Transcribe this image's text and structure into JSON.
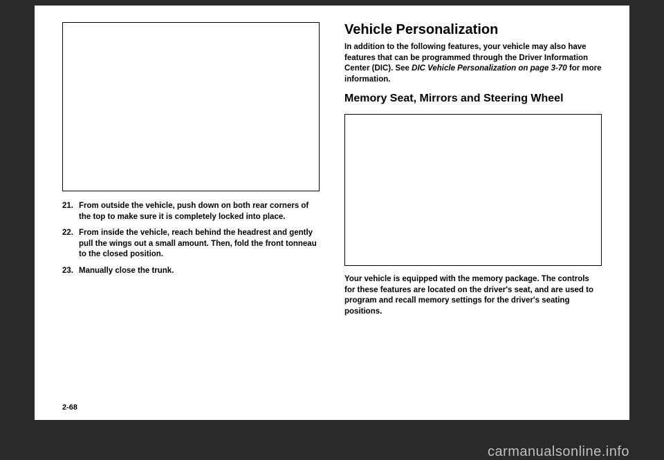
{
  "left": {
    "items": [
      {
        "num": "21.",
        "text": "From outside the vehicle, push down on both rear corners of the top to make sure it is completely locked into place."
      },
      {
        "num": "22.",
        "text": "From inside the vehicle, reach behind the headrest and gently pull the wings out a small amount. Then, fold the front tonneau to the closed position."
      },
      {
        "num": "23.",
        "text": "Manually close the trunk."
      }
    ]
  },
  "right": {
    "section_title": "Vehicle Personalization",
    "intro_a": "In addition to the following features, your vehicle may also have features that can be programmed through the Driver Information Center (DIC). See ",
    "intro_italic": "DIC Vehicle Personalization on page 3-70",
    "intro_b": " for more information.",
    "subsection_title": "Memory Seat, Mirrors and Steering Wheel",
    "caption": "Your vehicle is equipped with the memory package. The controls for these features are located on the driver's seat, and are used to program and recall memory settings for the driver's seating positions."
  },
  "page_number": "2-68",
  "watermark": "carmanualsonline.info"
}
